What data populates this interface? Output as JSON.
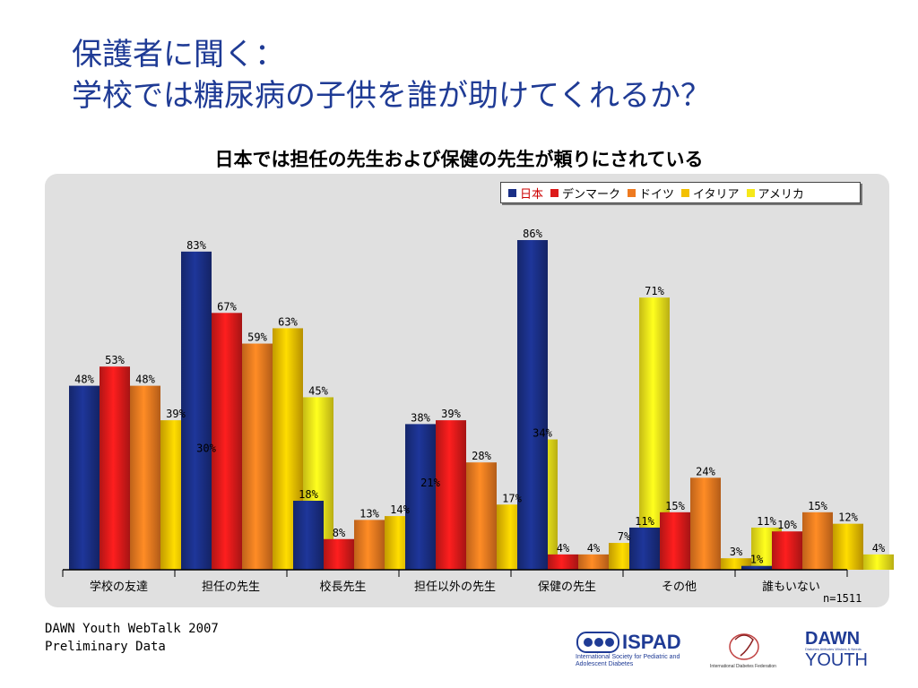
{
  "slide": {
    "title_line1": "保護者に聞く：",
    "title_line2": "学校では糖尿病の子供を誰が助けてくれるか？",
    "subtitle": "日本では担任の先生および保健の先生が頼りにされている",
    "sample": "n=1511",
    "footer_line1": "DAWN Youth WebTalk 2007",
    "footer_line2": "Preliminary Data"
  },
  "logos": {
    "ispad": "ISPAD",
    "ispad_sub": "International Society for Pediatric and Adolescent Diabetes",
    "idf": "International Diabetes Federation",
    "dawn": "DAWN",
    "dawn_sub": "Diabetes Attitudes Wishes & Needs",
    "youth": "YOUTH"
  },
  "chart_data": {
    "type": "bar",
    "categories": [
      "学校の友達",
      "担任の先生",
      "校長先生",
      "担任以外の先生",
      "保健の先生",
      "その他",
      "誰もいない"
    ],
    "series": [
      {
        "name": "日本",
        "values": [
          48,
          83,
          18,
          38,
          86,
          11,
          1
        ],
        "color": "#1a2f86"
      },
      {
        "name": "デンマーク",
        "values": [
          53,
          67,
          8,
          39,
          4,
          15,
          10
        ],
        "color": "#dd1a1a"
      },
      {
        "name": "ドイツ",
        "values": [
          48,
          59,
          13,
          28,
          4,
          24,
          15
        ],
        "color": "#ee7a20"
      },
      {
        "name": "イタリア",
        "values": [
          39,
          63,
          14,
          17,
          7,
          3,
          12
        ],
        "color": "#f3c000"
      },
      {
        "name": "アメリカ",
        "values": [
          30,
          45,
          21,
          34,
          71,
          11,
          4
        ],
        "color": "#f6e81a"
      }
    ],
    "value_suffix": "%",
    "ylim": [
      0,
      100
    ],
    "grid": false,
    "legend_position": "top-right"
  }
}
